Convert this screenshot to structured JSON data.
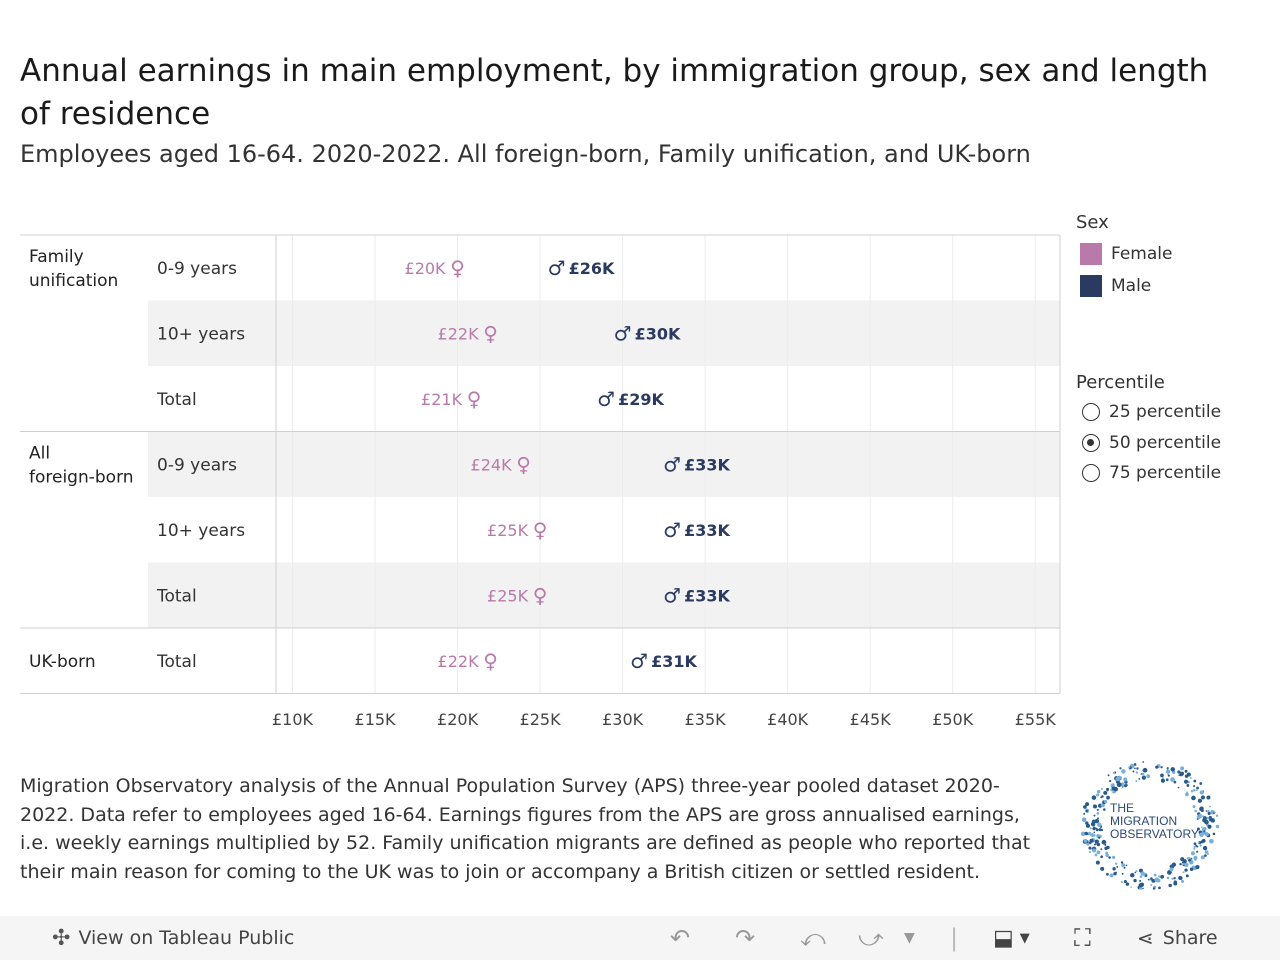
{
  "title": "Annual earnings in main employment, by immigration group, sex and length of residence",
  "subtitle": "Employees aged 16-64. 2020-2022. All foreign-born, Family unification, and UK-born",
  "legend": {
    "sex_title": "Sex",
    "female_label": "Female",
    "male_label": "Male",
    "percentile_title": "Percentile",
    "p25": "25 percentile",
    "p50": "50 percentile",
    "p75": "75 percentile",
    "selected": "50 percentile"
  },
  "colors": {
    "female": "#b97aab",
    "male": "#2a3a60",
    "band": "#f2f2f2",
    "grid": "#d0d0d0"
  },
  "chart_data": {
    "type": "dot-range",
    "title": "Annual earnings in main employment, by immigration group, sex and length of residence",
    "x_range": [
      9000,
      56500
    ],
    "x_ticks": [
      10000,
      15000,
      20000,
      25000,
      30000,
      35000,
      40000,
      45000,
      50000,
      55000
    ],
    "x_tick_labels": [
      "£10K",
      "£15K",
      "£20K",
      "£25K",
      "£30K",
      "£35K",
      "£40K",
      "£45K",
      "£50K",
      "£55K"
    ],
    "series": [
      {
        "name": "Female",
        "symbol": "♀"
      },
      {
        "name": "Male",
        "symbol": "♂"
      }
    ],
    "rows": [
      {
        "group": "Family unification",
        "sub": "0-9 years",
        "female": 20000,
        "female_label": "£20K",
        "male": 26000,
        "male_label": "£26K"
      },
      {
        "group": "",
        "sub": "10+ years",
        "female": 22000,
        "female_label": "£22K",
        "male": 30000,
        "male_label": "£30K"
      },
      {
        "group": "",
        "sub": "Total",
        "female": 21000,
        "female_label": "£21K",
        "male": 29000,
        "male_label": "£29K"
      },
      {
        "group": "All foreign-born",
        "sub": "0-9 years",
        "female": 24000,
        "female_label": "£24K",
        "male": 33000,
        "male_label": "£33K"
      },
      {
        "group": "",
        "sub": "10+ years",
        "female": 25000,
        "female_label": "£25K",
        "male": 33000,
        "male_label": "£33K"
      },
      {
        "group": "",
        "sub": "Total",
        "female": 25000,
        "female_label": "£25K",
        "male": 33000,
        "male_label": "£33K"
      },
      {
        "group": "UK-born",
        "sub": "Total",
        "female": 22000,
        "female_label": "£22K",
        "male": 31000,
        "male_label": "£31K"
      }
    ]
  },
  "note": "Migration Observatory analysis of the Annual Population Survey (APS) three-year pooled dataset 2020-2022. Data refer to employees aged 16-64. Earnings figures from the APS are gross annualised earnings, i.e. weekly earnings multiplied by 52. Family unification migrants are defined as people who reported that their main reason for coming to the UK was to join or accompany a British citizen or settled resident.",
  "logo": {
    "line1": "THE",
    "line2": "MIGRATION",
    "line3": "OBSERVATORY"
  },
  "footer": {
    "view_label": "View on Tableau Public",
    "share_label": "Share"
  }
}
